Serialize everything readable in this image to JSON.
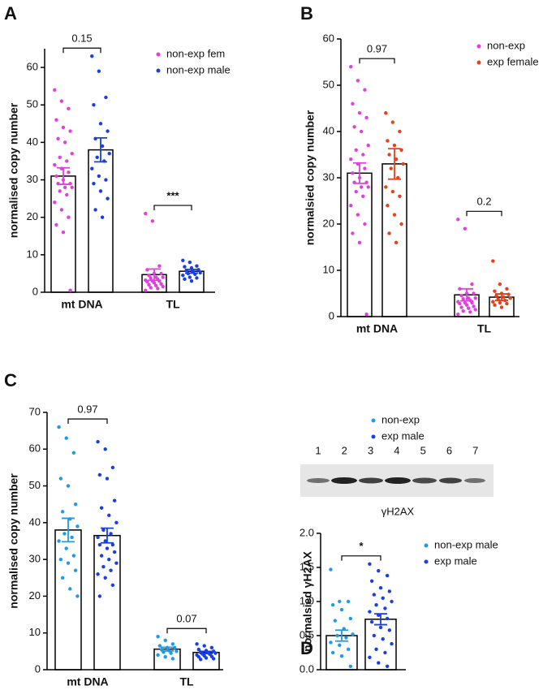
{
  "chart_data": [
    {
      "type": "bar",
      "panel": "A",
      "ylabel": "normalised  copy number",
      "categories": [
        "mt DNA",
        "TL"
      ],
      "comparisons": [
        "0.15",
        "***"
      ],
      "series": [
        {
          "name": "non-exp fem",
          "color": "#e040e0",
          "values": [
            31,
            4.7
          ],
          "errors": [
            2.2,
            1.5
          ],
          "points": [
            [
              54,
              51,
              49,
              46,
              44,
              43,
              41,
              40,
              37,
              36,
              35,
              34,
              33,
              32,
              31,
              30,
              29,
              29,
              28,
              28,
              27,
              26,
              24,
              22,
              20,
              18,
              16,
              0.5
            ],
            [
              21,
              19,
              7,
              6,
              5,
              5,
              4.5,
              4,
              4,
              3.8,
              3.5,
              3.2,
              3,
              3,
              2.8,
              2.5,
              2.2,
              2,
              1.8,
              1.5,
              1.2,
              1,
              0.5
            ]
          ]
        },
        {
          "name": "non-exp male",
          "color": "#1a3fe0",
          "values": [
            38,
            5.6
          ],
          "errors": [
            3.2,
            0.5
          ],
          "points": [
            [
              63,
              59,
              52,
              50,
              45,
              43,
              41,
              39,
              37,
              36,
              35,
              33,
              31,
              30,
              29,
              27,
              25,
              22,
              20
            ],
            [
              8.5,
              8,
              7,
              6.8,
              6.5,
              6,
              5.8,
              5.5,
              5.2,
              5,
              4.8,
              4.5,
              4,
              3.8,
              3.5,
              3
            ]
          ]
        }
      ],
      "ylim": [
        0,
        65
      ],
      "yticks": [
        0,
        10,
        20,
        30,
        40,
        50,
        60
      ]
    },
    {
      "type": "bar",
      "panel": "B",
      "ylabel": "normalsied copy number",
      "categories": [
        "mt DNA",
        "TL"
      ],
      "comparisons": [
        "0.97",
        "0.2"
      ],
      "series": [
        {
          "name": "non-exp",
          "color": "#e040e0",
          "values": [
            31,
            4.7
          ],
          "errors": [
            2.2,
            1.3
          ],
          "points": [
            [
              54,
              51,
              49,
              46,
              44,
              43,
              41,
              40,
              37,
              36,
              35,
              34,
              33,
              32,
              31,
              30,
              29,
              29,
              28,
              28,
              27,
              26,
              24,
              22,
              20,
              18,
              16,
              0.5
            ],
            [
              21,
              19,
              7,
              6,
              5,
              5,
              4.5,
              4,
              4,
              3.8,
              3.5,
              3.2,
              3,
              3,
              2.8,
              2.5,
              2.2,
              2,
              1.8,
              1.5,
              1.2,
              1,
              0.5
            ]
          ]
        },
        {
          "name": "exp female",
          "color": "#e8401c",
          "values": [
            33,
            4.2
          ],
          "errors": [
            3.3,
            0.7
          ],
          "points": [
            [
              44,
              42,
              40,
              38,
              37,
              36,
              35,
              34,
              33,
              32,
              30,
              28,
              27,
              26,
              24,
              22,
              20,
              18,
              16
            ],
            [
              12,
              7,
              6,
              5.5,
              5,
              4.8,
              4.5,
              4.2,
              4,
              3.8,
              3.5,
              3.2,
              3,
              2.8,
              2.5,
              2
            ]
          ]
        }
      ],
      "ylim": [
        0,
        60
      ],
      "yticks": [
        0,
        10,
        20,
        30,
        40,
        50,
        60
      ]
    },
    {
      "type": "bar",
      "panel": "C",
      "ylabel": "normalised copy number",
      "categories": [
        "mt DNA",
        "TL"
      ],
      "comparisons": [
        "0.97",
        "0.07"
      ],
      "series": [
        {
          "name": "non-exp",
          "color": "#1e9be8",
          "values": [
            38,
            5.6
          ],
          "errors": [
            3.2,
            0.5
          ],
          "points": [
            [
              66,
              63,
              59,
              52,
              50,
              45,
              43,
              41,
              39,
              37,
              36,
              35,
              33,
              31,
              30,
              29,
              27,
              25,
              22,
              20
            ],
            [
              9,
              8,
              7,
              6.5,
              6,
              6,
              5.5,
              5.2,
              5,
              4.8,
              4.5,
              4,
              3.5,
              3
            ]
          ]
        },
        {
          "name": "exp male",
          "color": "#1a3fe0",
          "values": [
            36.5,
            4.7
          ],
          "errors": [
            2,
            0.3
          ],
          "points": [
            [
              62,
              60,
              55,
              53,
              52,
              46,
              44,
              42,
              40,
              38,
              37,
              36,
              35,
              34,
              34,
              33,
              32,
              31,
              30,
              29,
              28,
              27,
              26,
              25,
              23,
              20
            ],
            [
              7,
              6.5,
              6,
              5.5,
              5.2,
              5,
              4.8,
              4.6,
              4.5,
              4.3,
              4.2,
              4,
              3.8,
              3.6,
              3.5,
              3.2,
              3,
              2.8
            ]
          ]
        }
      ],
      "ylim": [
        0,
        70
      ],
      "yticks": [
        0,
        10,
        20,
        30,
        40,
        50,
        60,
        70
      ]
    },
    {
      "type": "bar",
      "panel": "D",
      "ylabel": "normalsied γH2AX",
      "categories": [
        null
      ],
      "comparisons": [
        "*"
      ],
      "lanes": [
        "1",
        "2",
        "3",
        "4",
        "5",
        "6",
        "7"
      ],
      "blot_label": "γH2AX",
      "series": [
        {
          "name": "non-exp male",
          "color": "#1e9be8",
          "values": [
            0.5
          ],
          "errors": [
            0.08
          ],
          "points": [
            [
              1.47,
              1.0,
              1.0,
              0.95,
              0.88,
              0.75,
              0.72,
              0.6,
              0.52,
              0.5,
              0.47,
              0.4,
              0.36,
              0.3,
              0.25,
              0.2,
              0.05
            ]
          ]
        },
        {
          "name": "exp male",
          "color": "#1a3fe0",
          "values": [
            0.74
          ],
          "errors": [
            0.08
          ],
          "points": [
            [
              1.55,
              1.45,
              1.38,
              1.3,
              1.2,
              1.15,
              1.1,
              1.05,
              1.0,
              0.95,
              0.9,
              0.85,
              0.8,
              0.75,
              0.7,
              0.62,
              0.58,
              0.5,
              0.45,
              0.38,
              0.3,
              0.25,
              0.18,
              0.1,
              0.05
            ]
          ]
        }
      ],
      "ylim": [
        0,
        2
      ],
      "yticks": [
        {
          "value": 0,
          "label": "0.0"
        },
        {
          "value": 0.5,
          "label": "0.5"
        },
        {
          "value": 1,
          "label": "1.0"
        },
        {
          "value": 1.5,
          "label": "1.5"
        },
        {
          "value": 2,
          "label": "2.0"
        }
      ]
    }
  ]
}
